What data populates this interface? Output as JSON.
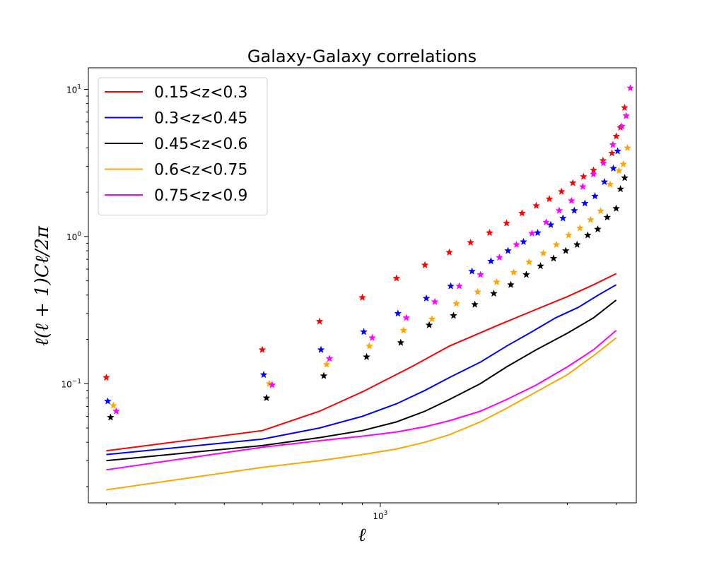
{
  "chart_data": {
    "type": "line",
    "title": "Galaxy-Galaxy correlations",
    "xlabel": "ℓ",
    "ylabel": "ℓ(ℓ + 1)Cℓ/2π",
    "xscale": "log",
    "yscale": "log",
    "xlim": [
      180,
      4500
    ],
    "ylim": [
      0.0155,
      14
    ],
    "x_ticks": [
      {
        "base": "10",
        "exp": "3",
        "value": 1000
      }
    ],
    "y_ticks": [
      {
        "base": "10",
        "exp": "−1",
        "value": 0.1
      },
      {
        "base": "10",
        "exp": "0",
        "value": 1
      },
      {
        "base": "10",
        "exp": "1",
        "value": 10
      }
    ],
    "legend_position": "top-left",
    "grid": false,
    "series": [
      {
        "name": "0.15<z<0.3",
        "color": "#ff0000",
        "line_x": [
          200,
          500,
          700,
          900,
          1200,
          1500,
          2000,
          2500,
          3000,
          3500,
          4000
        ],
        "line_y": [
          0.035,
          0.048,
          0.065,
          0.088,
          0.13,
          0.18,
          0.25,
          0.32,
          0.39,
          0.47,
          0.56
        ],
        "marker_x": [
          200,
          500,
          700,
          900,
          1100,
          1300,
          1500,
          1700,
          1900,
          2100,
          2300,
          2500,
          2700,
          2900,
          3100,
          3300,
          3500,
          3700,
          3900,
          4000,
          4100,
          4200
        ],
        "marker_y": [
          0.11,
          0.17,
          0.265,
          0.385,
          0.52,
          0.64,
          0.78,
          0.91,
          1.06,
          1.23,
          1.44,
          1.62,
          1.8,
          2.02,
          2.31,
          2.55,
          2.82,
          3.28,
          3.68,
          4.8,
          5.5,
          7.5
        ]
      },
      {
        "name": "0.3<z<0.45",
        "color": "#0000ff",
        "line_x": [
          200,
          500,
          700,
          900,
          1100,
          1300,
          1500,
          1800,
          2100,
          2400,
          2800,
          3200,
          3600,
          4000
        ],
        "line_y": [
          0.033,
          0.042,
          0.05,
          0.06,
          0.073,
          0.09,
          0.11,
          0.14,
          0.18,
          0.22,
          0.28,
          0.33,
          0.4,
          0.47
        ],
        "marker_x": [
          200,
          500,
          700,
          900,
          1100,
          1300,
          1500,
          1700,
          1900,
          2100,
          2300,
          2500,
          2700,
          2900,
          3100,
          3300,
          3500,
          3700,
          3900,
          4000
        ],
        "marker_y": [
          0.076,
          0.115,
          0.17,
          0.225,
          0.3,
          0.38,
          0.46,
          0.58,
          0.68,
          0.8,
          0.92,
          1.06,
          1.2,
          1.33,
          1.5,
          1.68,
          1.88,
          2.35,
          2.9,
          3.8
        ]
      },
      {
        "name": "0.45<z<0.6",
        "color": "#000000",
        "line_x": [
          200,
          500,
          700,
          900,
          1100,
          1300,
          1500,
          1800,
          2100,
          2500,
          3000,
          3500,
          4000
        ],
        "line_y": [
          0.03,
          0.038,
          0.043,
          0.048,
          0.055,
          0.065,
          0.078,
          0.1,
          0.13,
          0.17,
          0.22,
          0.28,
          0.37
        ],
        "marker_x": [
          200,
          500,
          700,
          900,
          1100,
          1300,
          1500,
          1700,
          1900,
          2100,
          2300,
          2500,
          2700,
          2900,
          3100,
          3300,
          3500,
          3700,
          3900,
          4000,
          4100
        ],
        "marker_y": [
          0.059,
          0.08,
          0.113,
          0.152,
          0.19,
          0.25,
          0.29,
          0.345,
          0.41,
          0.47,
          0.55,
          0.63,
          0.71,
          0.8,
          0.88,
          1.02,
          1.12,
          1.35,
          1.55,
          2.1,
          2.5
        ]
      },
      {
        "name": "0.6<z<0.75",
        "color": "#ffa500",
        "line_x": [
          200,
          500,
          700,
          900,
          1100,
          1300,
          1500,
          1800,
          2100,
          2500,
          3000,
          3500,
          4000
        ],
        "line_y": [
          0.019,
          0.027,
          0.03,
          0.033,
          0.036,
          0.04,
          0.045,
          0.055,
          0.068,
          0.088,
          0.115,
          0.155,
          0.205
        ],
        "marker_x": [
          200,
          500,
          700,
          900,
          1100,
          1300,
          1500,
          1700,
          1900,
          2100,
          2300,
          2500,
          2700,
          2900,
          3100,
          3300,
          3500,
          3700,
          3900,
          4000,
          4100
        ],
        "marker_y": [
          0.071,
          0.1,
          0.135,
          0.18,
          0.23,
          0.275,
          0.35,
          0.42,
          0.49,
          0.57,
          0.67,
          0.77,
          0.88,
          1.02,
          1.14,
          1.3,
          1.49,
          2.26,
          2.8,
          3.1,
          4.0
        ]
      },
      {
        "name": "0.75<z<0.9",
        "color": "#ff00ff",
        "line_x": [
          200,
          500,
          700,
          900,
          1100,
          1300,
          1500,
          1800,
          2100,
          2500,
          3000,
          3500,
          4000
        ],
        "line_y": [
          0.026,
          0.037,
          0.041,
          0.044,
          0.047,
          0.051,
          0.056,
          0.065,
          0.078,
          0.098,
          0.13,
          0.17,
          0.23
        ],
        "marker_x": [
          200,
          500,
          700,
          900,
          1100,
          1300,
          1500,
          1700,
          1900,
          2100,
          2300,
          2500,
          2700,
          2900,
          3100,
          3300,
          3500,
          3700,
          3900,
          4000,
          4100
        ],
        "marker_y": [
          0.065,
          0.098,
          0.148,
          0.205,
          0.28,
          0.36,
          0.46,
          0.55,
          0.72,
          0.88,
          1.05,
          1.25,
          1.5,
          1.75,
          2.18,
          2.65,
          3.15,
          4.2,
          5.6,
          6.6,
          10.2
        ]
      }
    ]
  }
}
